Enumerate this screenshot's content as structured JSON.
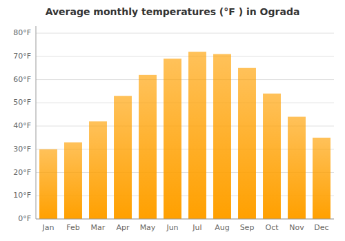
{
  "chart_data": {
    "type": "bar",
    "title": "Average monthly temperatures (°F ) in Ograda",
    "categories": [
      "Jan",
      "Feb",
      "Mar",
      "Apr",
      "May",
      "Jun",
      "Jul",
      "Aug",
      "Sep",
      "Oct",
      "Nov",
      "Dec"
    ],
    "values": [
      30,
      33,
      42,
      53,
      62,
      69,
      72,
      71,
      65,
      54,
      44,
      35
    ],
    "color": "#FFA000",
    "ylim": [
      0,
      83
    ],
    "yticks": [
      {
        "value": 0,
        "label": "0°F"
      },
      {
        "value": 10,
        "label": "10°F"
      },
      {
        "value": 20,
        "label": "20°F"
      },
      {
        "value": 30,
        "label": "30°F"
      },
      {
        "value": 40,
        "label": "40°F"
      },
      {
        "value": 50,
        "label": "50°F"
      },
      {
        "value": 60,
        "label": "60°F"
      },
      {
        "value": 70,
        "label": "70°F"
      },
      {
        "value": 80,
        "label": "80°F"
      }
    ],
    "grid": true
  }
}
